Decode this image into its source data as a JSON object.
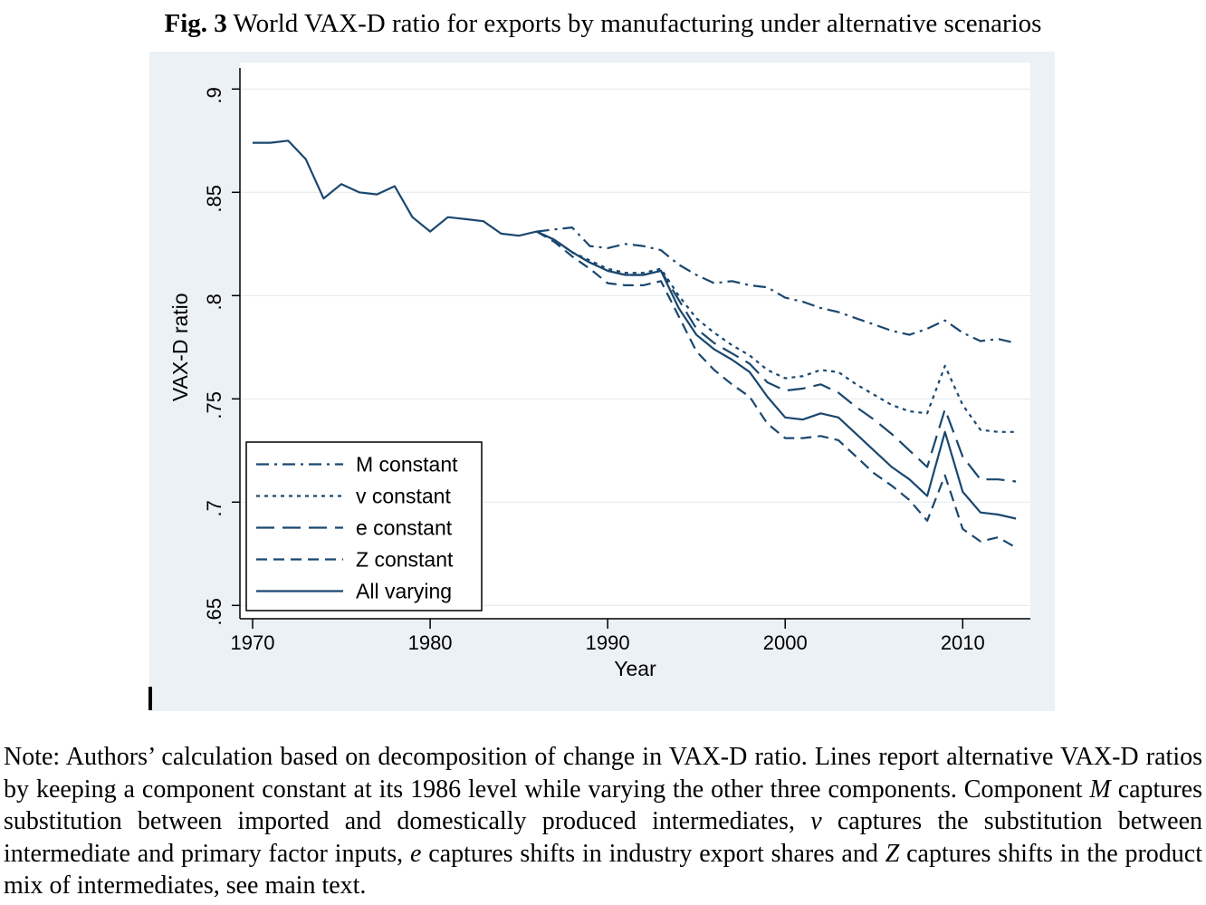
{
  "page": {
    "title_label": "Fig. 3",
    "title_text": "World VAX-D ratio for exports by manufacturing under alternative scenarios"
  },
  "note": {
    "segments": [
      {
        "t": "Note: Authors’ calculation based on decomposition of change in VAX-D ratio. Lines report alternative VAX-D ratios by keeping a component constant at its 1986 level while varying the other three components. Component ",
        "i": false
      },
      {
        "t": "M",
        "i": true
      },
      {
        "t": " captures substitution between imported and domestically produced intermediates, ",
        "i": false
      },
      {
        "t": "v",
        "i": true
      },
      {
        "t": " captures the substitution between intermediate and primary factor inputs, ",
        "i": false
      },
      {
        "t": "e",
        "i": true
      },
      {
        "t": " captures shifts in industry export shares and ",
        "i": false
      },
      {
        "t": "Z",
        "i": true
      },
      {
        "t": " captures shifts in the product mix of intermediates, see main text.",
        "i": false
      }
    ]
  },
  "chart_data": {
    "type": "line",
    "title": "",
    "xlabel": "Year",
    "ylabel": "VAX-D ratio",
    "x_ticks": [
      1970,
      1980,
      1990,
      2000,
      2010
    ],
    "y_ticks": [
      {
        "value": 0.9,
        "label": ".9"
      },
      {
        "value": 0.85,
        "label": ".85"
      },
      {
        "value": 0.8,
        "label": ".8"
      },
      {
        "value": 0.75,
        "label": ".75"
      },
      {
        "value": 0.7,
        "label": ".7"
      },
      {
        "value": 0.65,
        "label": ".65"
      }
    ],
    "xlim": [
      1969.3,
      2013.8
    ],
    "ylim": [
      0.643,
      0.912
    ],
    "grid": true,
    "legend_position": "bottom-left-inside",
    "line_color": "#1a476f",
    "figure_background": "#ebf1f4",
    "plot_background": "#ffffff",
    "grid_color": "#e4ebee",
    "series": [
      {
        "name": "M constant",
        "style": "dashdot",
        "years": [
          1986,
          1987,
          1988,
          1989,
          1990,
          1991,
          1992,
          1993,
          1994,
          1995,
          1996,
          1997,
          1998,
          1999,
          2000,
          2001,
          2002,
          2003,
          2004,
          2005,
          2006,
          2007,
          2008,
          2009,
          2010,
          2011,
          2012,
          2013
        ],
        "values": [
          0.831,
          0.832,
          0.833,
          0.824,
          0.823,
          0.825,
          0.824,
          0.822,
          0.815,
          0.81,
          0.806,
          0.807,
          0.805,
          0.804,
          0.799,
          0.797,
          0.794,
          0.792,
          0.789,
          0.786,
          0.783,
          0.781,
          0.784,
          0.788,
          0.782,
          0.778,
          0.779,
          0.777
        ]
      },
      {
        "name": "v constant",
        "style": "dotted",
        "years": [
          1986,
          1987,
          1988,
          1989,
          1990,
          1991,
          1992,
          1993,
          1994,
          1995,
          1996,
          1997,
          1998,
          1999,
          2000,
          2001,
          2002,
          2003,
          2004,
          2005,
          2006,
          2007,
          2008,
          2009,
          2010,
          2011,
          2012,
          2013
        ],
        "values": [
          0.831,
          0.827,
          0.821,
          0.817,
          0.813,
          0.811,
          0.811,
          0.813,
          0.8,
          0.789,
          0.782,
          0.776,
          0.771,
          0.764,
          0.76,
          0.761,
          0.764,
          0.763,
          0.757,
          0.752,
          0.747,
          0.744,
          0.743,
          0.766,
          0.747,
          0.735,
          0.734,
          0.734
        ]
      },
      {
        "name": "e constant",
        "style": "longdash",
        "years": [
          1986,
          1987,
          1988,
          1989,
          1990,
          1991,
          1992,
          1993,
          1994,
          1995,
          1996,
          1997,
          1998,
          1999,
          2000,
          2001,
          2002,
          2003,
          2004,
          2005,
          2006,
          2007,
          2008,
          2009,
          2010,
          2011,
          2012,
          2013
        ],
        "values": [
          0.831,
          0.827,
          0.821,
          0.816,
          0.812,
          0.81,
          0.81,
          0.812,
          0.798,
          0.784,
          0.777,
          0.772,
          0.767,
          0.758,
          0.754,
          0.755,
          0.757,
          0.753,
          0.746,
          0.74,
          0.733,
          0.725,
          0.717,
          0.745,
          0.722,
          0.711,
          0.711,
          0.71
        ]
      },
      {
        "name": "Z constant",
        "style": "dash",
        "years": [
          1986,
          1987,
          1988,
          1989,
          1990,
          1991,
          1992,
          1993,
          1994,
          1995,
          1996,
          1997,
          1998,
          1999,
          2000,
          2001,
          2002,
          2003,
          2004,
          2005,
          2006,
          2007,
          2008,
          2009,
          2010,
          2011,
          2012,
          2013
        ],
        "values": [
          0.831,
          0.826,
          0.819,
          0.813,
          0.806,
          0.805,
          0.805,
          0.807,
          0.79,
          0.773,
          0.764,
          0.757,
          0.751,
          0.738,
          0.731,
          0.731,
          0.732,
          0.73,
          0.722,
          0.714,
          0.708,
          0.701,
          0.691,
          0.713,
          0.687,
          0.681,
          0.683,
          0.678
        ]
      },
      {
        "name": "All varying",
        "style": "solid",
        "years": [
          1970,
          1971,
          1972,
          1973,
          1974,
          1975,
          1976,
          1977,
          1978,
          1979,
          1980,
          1981,
          1982,
          1983,
          1984,
          1985,
          1986,
          1987,
          1988,
          1989,
          1990,
          1991,
          1992,
          1993,
          1994,
          1995,
          1996,
          1997,
          1998,
          1999,
          2000,
          2001,
          2002,
          2003,
          2004,
          2005,
          2006,
          2007,
          2008,
          2009,
          2010,
          2011,
          2012,
          2013
        ],
        "values": [
          0.874,
          0.874,
          0.875,
          0.866,
          0.847,
          0.854,
          0.85,
          0.849,
          0.853,
          0.838,
          0.831,
          0.838,
          0.837,
          0.836,
          0.83,
          0.829,
          0.831,
          0.827,
          0.821,
          0.816,
          0.812,
          0.81,
          0.81,
          0.812,
          0.794,
          0.781,
          0.774,
          0.769,
          0.763,
          0.751,
          0.741,
          0.74,
          0.743,
          0.741,
          0.733,
          0.725,
          0.717,
          0.711,
          0.703,
          0.734,
          0.705,
          0.695,
          0.694,
          0.692
        ]
      }
    ],
    "legend": [
      "M constant",
      "v constant",
      "e constant",
      "Z constant",
      "All varying"
    ]
  }
}
